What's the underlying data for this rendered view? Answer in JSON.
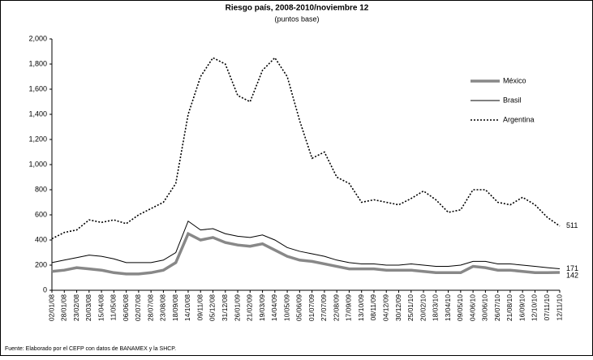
{
  "chart_data": {
    "type": "line",
    "title": "Riesgo país, 2008-2010/noviembre 12",
    "subtitle": "(puntos base)",
    "source": "Fuente: Elaborado por el CEFP con datos de BANAMEX y la SHCP.",
    "categories": [
      "02/01/08",
      "28/01/08",
      "23/02/08",
      "20/03/08",
      "15/04/08",
      "11/05/08",
      "06/06/08",
      "02/07/08",
      "28/07/08",
      "23/08/08",
      "18/09/08",
      "14/10/08",
      "09/11/08",
      "05/12/08",
      "31/12/08",
      "26/01/09",
      "21/02/09",
      "19/03/09",
      "14/04/09",
      "10/05/09",
      "05/06/09",
      "01/07/09",
      "27/07/09",
      "22/08/09",
      "17/09/09",
      "13/10/09",
      "08/11/09",
      "04/12/09",
      "30/12/09",
      "25/01/10",
      "20/02/10",
      "18/03/10",
      "13/04/10",
      "09/05/10",
      "04/06/10",
      "30/06/10",
      "26/07/10",
      "21/08/10",
      "16/09/10",
      "12/10/10",
      "07/11/10",
      "12/11/10"
    ],
    "series": [
      {
        "name": "México",
        "color": "#888888",
        "style": "thick",
        "values": [
          150,
          160,
          180,
          170,
          160,
          140,
          130,
          130,
          140,
          160,
          220,
          450,
          400,
          420,
          380,
          360,
          350,
          370,
          320,
          270,
          240,
          230,
          210,
          190,
          170,
          170,
          170,
          160,
          160,
          160,
          150,
          140,
          140,
          140,
          190,
          180,
          160,
          160,
          150,
          140,
          140,
          142
        ]
      },
      {
        "name": "Brasil",
        "color": "#000000",
        "style": "solid",
        "values": [
          220,
          240,
          260,
          280,
          270,
          250,
          220,
          220,
          220,
          240,
          300,
          550,
          480,
          490,
          450,
          430,
          420,
          440,
          400,
          340,
          310,
          290,
          270,
          240,
          220,
          210,
          210,
          200,
          200,
          210,
          200,
          190,
          190,
          200,
          230,
          230,
          210,
          210,
          200,
          190,
          180,
          171
        ]
      },
      {
        "name": "Argentina",
        "color": "#000000",
        "style": "dotted",
        "values": [
          410,
          460,
          480,
          560,
          540,
          560,
          530,
          600,
          650,
          700,
          850,
          1400,
          1700,
          1850,
          1800,
          1550,
          1500,
          1750,
          1850,
          1700,
          1350,
          1050,
          1100,
          900,
          850,
          700,
          720,
          700,
          680,
          730,
          790,
          720,
          620,
          640,
          800,
          800,
          700,
          680,
          740,
          680,
          580,
          511
        ]
      }
    ],
    "ylim": [
      0,
      2000
    ],
    "yticks": [
      0,
      200,
      400,
      600,
      800,
      {
        "value": 1000,
        "label": "1,000"
      },
      {
        "value": 1200,
        "label": "1,200"
      },
      {
        "value": 1400,
        "label": "1,400"
      },
      {
        "value": 1600,
        "label": "1,600"
      },
      {
        "value": 1800,
        "label": "1,800"
      },
      {
        "value": 2000,
        "label": "2,000"
      }
    ],
    "grid": false,
    "legend": "upper right",
    "end_labels": true
  }
}
